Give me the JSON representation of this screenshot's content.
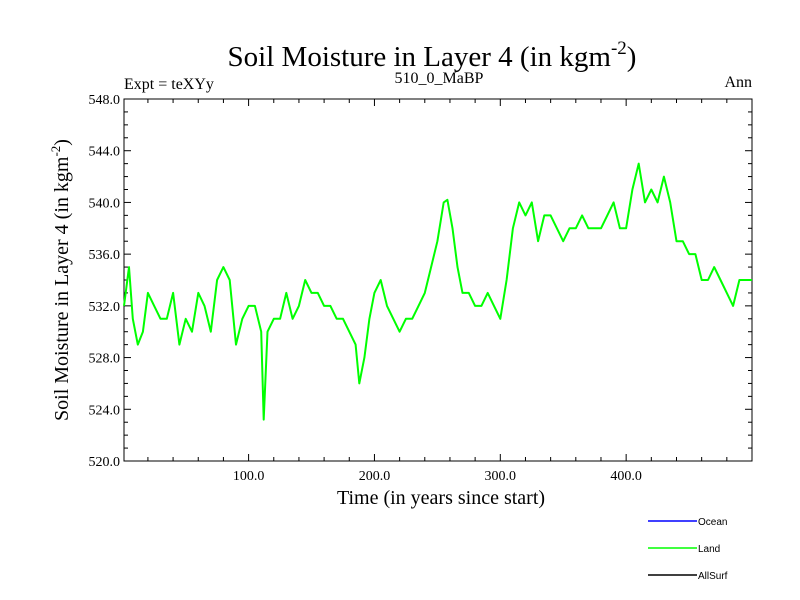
{
  "chart_data": {
    "type": "line",
    "title": "Soil Moisture in Layer 4 (in kgm",
    "title_superscript": "-2",
    "title_close": ")",
    "subtitle_left": "Expt = teXYy",
    "subtitle_center": "510_0_MaBP",
    "subtitle_right": "Ann",
    "xlabel": "Time (in years since start)",
    "ylabel": "Soil Moisture in Layer 4 (in kgm",
    "ylabel_superscript": "-2",
    "ylabel_close": ")",
    "xlim": [
      1,
      500
    ],
    "ylim": [
      520,
      548
    ],
    "xticks": [
      100,
      200,
      300,
      400
    ],
    "xtick_labels": [
      "100.0",
      "200.0",
      "300.0",
      "400.0"
    ],
    "yticks": [
      520,
      524,
      528,
      532,
      536,
      540,
      544,
      548
    ],
    "ytick_labels": [
      "520.0",
      "524.0",
      "528.0",
      "532.0",
      "536.0",
      "540.0",
      "544.0",
      "548.0"
    ],
    "grid": false,
    "legend_position": "bottom-right, below plot",
    "legend": [
      {
        "name": "Ocean",
        "color": "#0000ff"
      },
      {
        "name": "Land",
        "color": "#00ff00"
      },
      {
        "name": "AllSurf",
        "color": "#000000"
      }
    ],
    "series": [
      {
        "name": "Land",
        "color": "#00ff00",
        "x": [
          1,
          5,
          8,
          12,
          16,
          20,
          25,
          30,
          35,
          40,
          45,
          50,
          55,
          60,
          65,
          70,
          75,
          80,
          85,
          90,
          95,
          100,
          105,
          110,
          112,
          115,
          120,
          125,
          130,
          135,
          140,
          145,
          150,
          155,
          160,
          165,
          170,
          175,
          180,
          185,
          188,
          192,
          196,
          200,
          205,
          210,
          215,
          220,
          225,
          230,
          235,
          240,
          245,
          250,
          255,
          258,
          262,
          266,
          270,
          275,
          280,
          285,
          290,
          295,
          300,
          305,
          310,
          315,
          320,
          325,
          330,
          335,
          340,
          345,
          350,
          355,
          360,
          365,
          370,
          375,
          380,
          385,
          390,
          395,
          400,
          405,
          410,
          415,
          420,
          425,
          430,
          435,
          440,
          445,
          450,
          455,
          460,
          465,
          470,
          475,
          480,
          485,
          490,
          495,
          500
        ],
        "y": [
          532,
          535,
          531,
          529,
          530,
          533,
          532,
          531,
          531,
          533,
          529,
          531,
          530,
          533,
          532,
          530,
          534,
          535,
          534,
          529,
          531,
          532,
          532,
          530,
          523.2,
          530,
          531,
          531,
          533,
          531,
          532,
          534,
          533,
          533,
          532,
          532,
          531,
          531,
          530,
          529,
          526,
          528,
          531,
          533,
          534,
          532,
          531,
          530,
          531,
          531,
          532,
          533,
          535,
          537,
          540,
          540.2,
          538,
          535,
          533,
          533,
          532,
          532,
          533,
          532,
          531,
          534,
          538,
          540,
          539,
          540,
          537,
          539,
          539,
          538,
          537,
          538,
          538,
          539,
          538,
          538,
          538,
          539,
          540,
          538,
          538,
          541,
          543,
          540,
          541,
          540,
          542,
          540,
          537,
          537,
          536,
          536,
          534,
          534,
          535,
          534,
          533,
          532,
          534,
          534,
          534
        ]
      }
    ]
  }
}
